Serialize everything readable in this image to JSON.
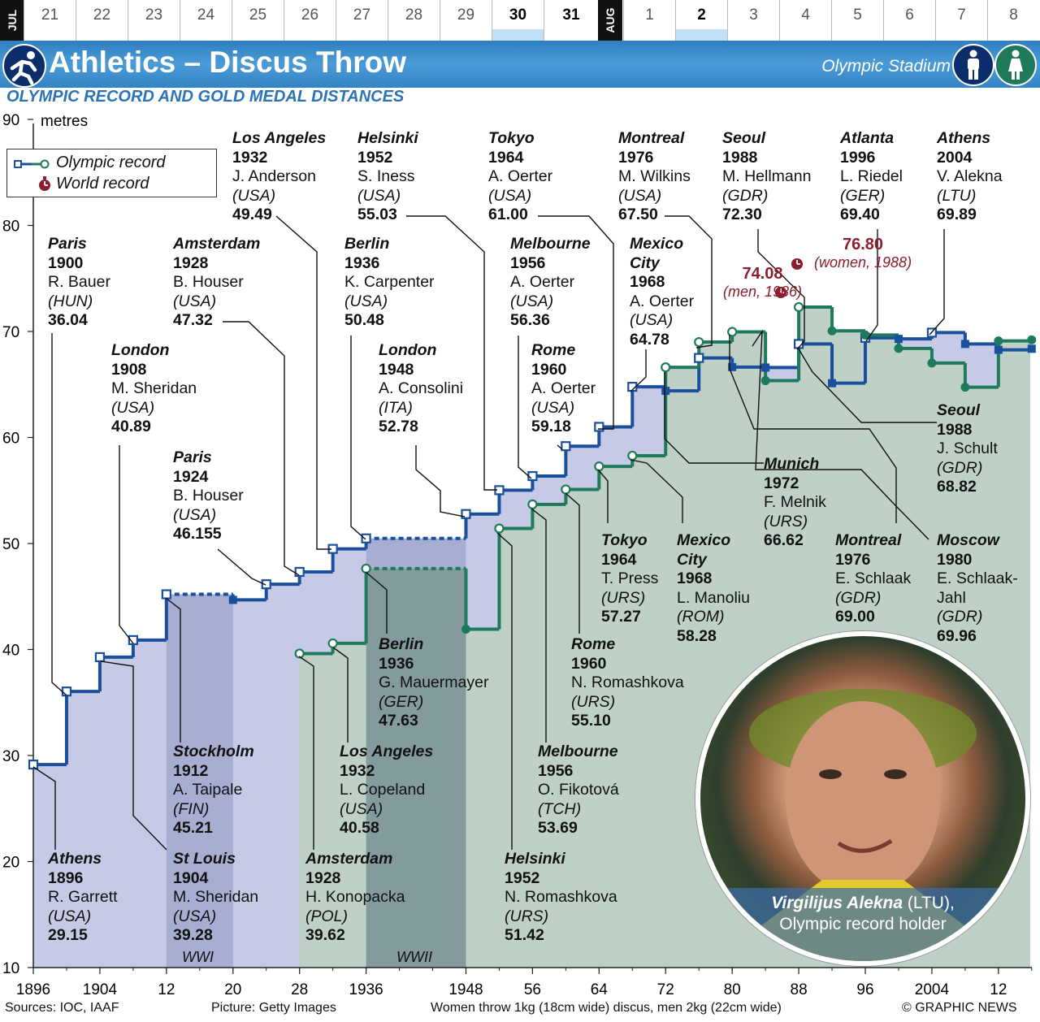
{
  "dates": {
    "jul_label": "JUL",
    "aug_label": "AUG",
    "days": [
      {
        "d": "21",
        "bold": false,
        "ev": false
      },
      {
        "d": "22",
        "bold": false,
        "ev": false
      },
      {
        "d": "23",
        "bold": false,
        "ev": false
      },
      {
        "d": "24",
        "bold": false,
        "ev": false
      },
      {
        "d": "25",
        "bold": false,
        "ev": false
      },
      {
        "d": "26",
        "bold": false,
        "ev": false
      },
      {
        "d": "27",
        "bold": false,
        "ev": false
      },
      {
        "d": "28",
        "bold": false,
        "ev": false
      },
      {
        "d": "29",
        "bold": false,
        "ev": false
      },
      {
        "d": "30",
        "bold": true,
        "ev": true
      },
      {
        "d": "31",
        "bold": true,
        "ev": false
      },
      {
        "d": "1",
        "bold": false,
        "ev": false
      },
      {
        "d": "2",
        "bold": true,
        "ev": true
      },
      {
        "d": "3",
        "bold": false,
        "ev": false
      },
      {
        "d": "4",
        "bold": false,
        "ev": false
      },
      {
        "d": "5",
        "bold": false,
        "ev": false
      },
      {
        "d": "6",
        "bold": false,
        "ev": false
      },
      {
        "d": "7",
        "bold": false,
        "ev": false
      },
      {
        "d": "8",
        "bold": false,
        "ev": false
      }
    ]
  },
  "header": {
    "title": "Athletics – Discus Throw",
    "venue": "Olympic Stadium",
    "sport_icon": "discus-thrower-icon",
    "men_icon": "man-icon",
    "women_icon": "woman-icon"
  },
  "subtitle": "OLYMPIC RECORD AND GOLD MEDAL DISTANCES",
  "legend": {
    "olympic": "Olympic record",
    "world": "World record",
    "world_icon": "stopwatch-icon"
  },
  "colors": {
    "men": "#1a4f9c",
    "women": "#1e7a5a",
    "men_fill": "#c7cae6",
    "women_fill": "#bfd0c7",
    "record": "#8b1e2e"
  },
  "chart_data": {
    "type": "line",
    "ylabel": "metres",
    "ylim": [
      10,
      90
    ],
    "yticks": [
      10,
      20,
      30,
      40,
      50,
      60,
      70,
      80,
      90
    ],
    "xticks": [
      {
        "x": 1896,
        "label": "1896"
      },
      {
        "x": 1904,
        "label": "1904"
      },
      {
        "x": 1912,
        "label": "12"
      },
      {
        "x": 1920,
        "label": "20"
      },
      {
        "x": 1928,
        "label": "28"
      },
      {
        "x": 1936,
        "label": "1936"
      },
      {
        "x": 1948,
        "label": "1948"
      },
      {
        "x": 1956,
        "label": "56"
      },
      {
        "x": 1964,
        "label": "64"
      },
      {
        "x": 1972,
        "label": "72"
      },
      {
        "x": 1980,
        "label": "80"
      },
      {
        "x": 1988,
        "label": "88"
      },
      {
        "x": 1996,
        "label": "96"
      },
      {
        "x": 2004,
        "label": "2004"
      },
      {
        "x": 2012,
        "label": "12"
      }
    ],
    "series": [
      {
        "name": "Men",
        "points": [
          {
            "x": 1896,
            "y": 29.15,
            "r": "or"
          },
          {
            "x": 1900,
            "y": 36.04,
            "r": "or"
          },
          {
            "x": 1904,
            "y": 39.28,
            "r": "or"
          },
          {
            "x": 1908,
            "y": 40.89,
            "r": "or"
          },
          {
            "x": 1912,
            "y": 45.21,
            "r": "or"
          },
          {
            "x": 1920,
            "y": 44.68,
            "r": "g"
          },
          {
            "x": 1924,
            "y": 46.155,
            "r": "or"
          },
          {
            "x": 1928,
            "y": 47.32,
            "r": "or"
          },
          {
            "x": 1932,
            "y": 49.49,
            "r": "or"
          },
          {
            "x": 1936,
            "y": 50.48,
            "r": "or"
          },
          {
            "x": 1948,
            "y": 52.78,
            "r": "or"
          },
          {
            "x": 1952,
            "y": 55.03,
            "r": "or"
          },
          {
            "x": 1956,
            "y": 56.36,
            "r": "or"
          },
          {
            "x": 1960,
            "y": 59.18,
            "r": "or"
          },
          {
            "x": 1964,
            "y": 61.0,
            "r": "or"
          },
          {
            "x": 1968,
            "y": 64.78,
            "r": "or"
          },
          {
            "x": 1972,
            "y": 64.4,
            "r": "g"
          },
          {
            "x": 1976,
            "y": 67.5,
            "r": "or"
          },
          {
            "x": 1980,
            "y": 66.64,
            "r": "g"
          },
          {
            "x": 1984,
            "y": 66.6,
            "r": "g"
          },
          {
            "x": 1988,
            "y": 68.82,
            "r": "or"
          },
          {
            "x": 1992,
            "y": 65.12,
            "r": "g"
          },
          {
            "x": 1996,
            "y": 69.4,
            "r": "or"
          },
          {
            "x": 2000,
            "y": 69.3,
            "r": "g"
          },
          {
            "x": 2004,
            "y": 69.89,
            "r": "or"
          },
          {
            "x": 2008,
            "y": 68.82,
            "r": "g"
          },
          {
            "x": 2012,
            "y": 68.27,
            "r": "g"
          },
          {
            "x": 2016,
            "y": 68.37,
            "r": "g"
          }
        ]
      },
      {
        "name": "Women",
        "points": [
          {
            "x": 1928,
            "y": 39.62,
            "r": "or"
          },
          {
            "x": 1932,
            "y": 40.58,
            "r": "or"
          },
          {
            "x": 1936,
            "y": 47.63,
            "r": "or"
          },
          {
            "x": 1948,
            "y": 41.92,
            "r": "g"
          },
          {
            "x": 1952,
            "y": 51.42,
            "r": "or"
          },
          {
            "x": 1956,
            "y": 53.69,
            "r": "or"
          },
          {
            "x": 1960,
            "y": 55.1,
            "r": "or"
          },
          {
            "x": 1964,
            "y": 57.27,
            "r": "or"
          },
          {
            "x": 1968,
            "y": 58.28,
            "r": "or"
          },
          {
            "x": 1972,
            "y": 66.62,
            "r": "or"
          },
          {
            "x": 1976,
            "y": 69.0,
            "r": "or"
          },
          {
            "x": 1980,
            "y": 69.96,
            "r": "or"
          },
          {
            "x": 1984,
            "y": 65.36,
            "r": "g"
          },
          {
            "x": 1988,
            "y": 72.3,
            "r": "or"
          },
          {
            "x": 1992,
            "y": 70.06,
            "r": "g"
          },
          {
            "x": 1996,
            "y": 69.66,
            "r": "g"
          },
          {
            "x": 2000,
            "y": 68.4,
            "r": "g"
          },
          {
            "x": 2004,
            "y": 67.02,
            "r": "g"
          },
          {
            "x": 2008,
            "y": 64.74,
            "r": "g"
          },
          {
            "x": 2012,
            "y": 69.11,
            "r": "g"
          },
          {
            "x": 2016,
            "y": 69.21,
            "r": "g"
          }
        ]
      }
    ],
    "world_records": [
      {
        "y": 74.08,
        "value": "74.08",
        "label": "(men, 1986)"
      },
      {
        "y": 76.8,
        "value": "76.80",
        "label": "(women, 1988)"
      }
    ],
    "war_bands": [
      {
        "x0": 1912,
        "x1": 1920,
        "label": "WWI"
      },
      {
        "x0": 1936,
        "x1": 1948,
        "label": "WWII"
      }
    ]
  },
  "annotations": [
    {
      "city": "Los Angeles",
      "year": "1932",
      "name": "J. Anderson",
      "nat": "(USA)",
      "dist": "49.49"
    },
    {
      "city": "Helsinki",
      "year": "1952",
      "name": "S. Iness",
      "nat": "(USA)",
      "dist": "55.03"
    },
    {
      "city": "Tokyo",
      "year": "1964",
      "name": "A. Oerter",
      "nat": "(USA)",
      "dist": "61.00"
    },
    {
      "city": "Montreal",
      "year": "1976",
      "name": "M. Wilkins",
      "nat": "(USA)",
      "dist": "67.50"
    },
    {
      "city": "Seoul",
      "year": "1988",
      "name": "M. Hellmann",
      "nat": "(GDR)",
      "dist": "72.30"
    },
    {
      "city": "Atlanta",
      "year": "1996",
      "name": "L. Riedel",
      "nat": "(GER)",
      "dist": "69.40"
    },
    {
      "city": "Athens",
      "year": "2004",
      "name": "V. Alekna",
      "nat": "(LTU)",
      "dist": "69.89"
    },
    {
      "city": "Paris",
      "year": "1900",
      "name": "R. Bauer",
      "nat": "(HUN)",
      "dist": "36.04"
    },
    {
      "city": "Amsterdam",
      "year": "1928",
      "name": "B. Houser",
      "nat": "(USA)",
      "dist": "47.32"
    },
    {
      "city": "Berlin",
      "year": "1936",
      "name": "K. Carpenter",
      "nat": "(USA)",
      "dist": "50.48"
    },
    {
      "city": "Melbourne",
      "year": "1956",
      "name": "A. Oerter",
      "nat": "(USA)",
      "dist": "56.36"
    },
    {
      "city": "Mexico",
      "city2": "City",
      "year": "1968",
      "name": "A. Oerter",
      "nat": "(USA)",
      "dist": "64.78"
    },
    {
      "city": "London",
      "year": "1908",
      "name": "M. Sheridan",
      "nat": "(USA)",
      "dist": "40.89"
    },
    {
      "city": "London",
      "year": "1948",
      "name": "A. Consolini",
      "nat": "(ITA)",
      "dist": "52.78"
    },
    {
      "city": "Rome",
      "year": "1960",
      "name": "A. Oerter",
      "nat": "(USA)",
      "dist": "59.18"
    },
    {
      "city": "Paris",
      "year": "1924",
      "name": "B. Houser",
      "nat": "(USA)",
      "dist": "46.155"
    },
    {
      "city": "Seoul",
      "year": "1988",
      "name": "J. Schult",
      "nat": "(GDR)",
      "dist": "68.82"
    },
    {
      "city": "Munich",
      "year": "1972",
      "name": "F. Melnik",
      "nat": "(URS)",
      "dist": "66.62"
    },
    {
      "city": "Tokyo",
      "year": "1964",
      "name": "T. Press",
      "nat": "(URS)",
      "dist": "57.27"
    },
    {
      "city": "Mexico",
      "city2": "City",
      "year": "1968",
      "name": "L. Manoliu",
      "nat": "(ROM)",
      "dist": "58.28"
    },
    {
      "city": "Montreal",
      "year": "1976",
      "name": "E. Schlaak",
      "nat": "(GDR)",
      "dist": "69.00"
    },
    {
      "city": "Moscow",
      "year": "1980",
      "name": "E. Schlaak-",
      "name2": "Jahl",
      "nat": "(GDR)",
      "dist": "69.96"
    },
    {
      "city": "Berlin",
      "year": "1936",
      "name": "G. Mauermayer",
      "nat": "(GER)",
      "dist": "47.63"
    },
    {
      "city": "Rome",
      "year": "1960",
      "name": "N. Romashkova",
      "nat": "(URS)",
      "dist": "55.10"
    },
    {
      "city": "Stockholm",
      "year": "1912",
      "name": "A. Taipale",
      "nat": "(FIN)",
      "dist": "45.21"
    },
    {
      "city": "Los Angeles",
      "year": "1932",
      "name": "L. Copeland",
      "nat": "(USA)",
      "dist": "40.58"
    },
    {
      "city": "Melbourne",
      "year": "1956",
      "name": "O. Fikotová",
      "nat": "(TCH)",
      "dist": "53.69"
    },
    {
      "city": "Athens",
      "year": "1896",
      "name": "R. Garrett",
      "nat": "(USA)",
      "dist": "29.15"
    },
    {
      "city": "St Louis",
      "year": "1904",
      "name": "M. Sheridan",
      "nat": "(USA)",
      "dist": "39.28"
    },
    {
      "city": "Amsterdam",
      "year": "1928",
      "name": "H. Konopacka",
      "nat": "(POL)",
      "dist": "39.62"
    },
    {
      "city": "Helsinki",
      "year": "1952",
      "name": "N. Romashkova",
      "nat": "(URS)",
      "dist": "51.42"
    }
  ],
  "photo": {
    "name": "Virgilijus Alekna",
    "nat": " (LTU),",
    "caption": "Olympic record holder"
  },
  "footer": {
    "sources": "Sources: IOC, IAAF",
    "picture": "Picture: Getty Images",
    "note": "Women throw 1kg (18cm wide) discus, men 2kg (22cm wide)",
    "credit": "© GRAPHIC NEWS"
  }
}
